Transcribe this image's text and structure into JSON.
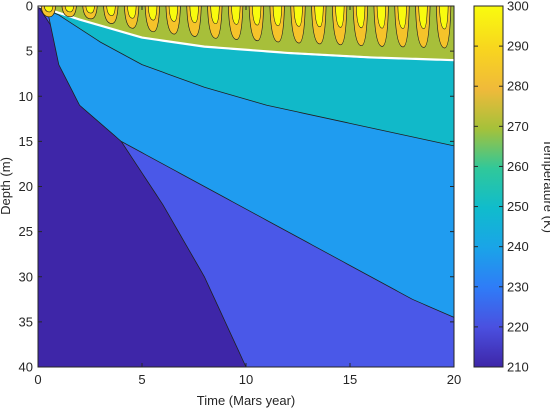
{
  "chart_data": {
    "type": "heatmap",
    "subtype": "filled-contour",
    "title": "",
    "xlabel": "Time (Mars year)",
    "ylabel": "Depth (m)",
    "colorbar_label": "Temperature (K)",
    "xlim": [
      0,
      20
    ],
    "ylim": [
      0,
      40
    ],
    "y_reversed": true,
    "x_ticks": [
      "0",
      "5",
      "10",
      "15",
      "20"
    ],
    "y_ticks": [
      "0",
      "5",
      "10",
      "15",
      "20",
      "25",
      "30",
      "35",
      "40"
    ],
    "colorbar_range": [
      210,
      300
    ],
    "colorbar_ticks": [
      "210",
      "220",
      "230",
      "240",
      "250",
      "260",
      "270",
      "280",
      "290",
      "300"
    ],
    "colormap": "parula",
    "grid": false,
    "contour_levels": [
      {
        "level": 220,
        "color": "#4a58e8",
        "depth_at_time": [
          [
            0,
            0
          ],
          [
            1,
            3.5
          ],
          [
            2,
            8
          ],
          [
            4,
            15
          ],
          [
            6,
            22
          ],
          [
            8,
            30
          ],
          [
            10,
            40
          ]
        ]
      },
      {
        "level": 230,
        "color": "#1f9cf0",
        "depth_at_time": [
          [
            0,
            0
          ],
          [
            0.5,
            1
          ],
          [
            1,
            6.5
          ],
          [
            2,
            11
          ],
          [
            4,
            15
          ],
          [
            6,
            17.5
          ],
          [
            8,
            20
          ],
          [
            10,
            22.5
          ],
          [
            12,
            25
          ],
          [
            14,
            27.5
          ],
          [
            16,
            30
          ],
          [
            18,
            32.5
          ],
          [
            20,
            34.5
          ]
        ]
      },
      {
        "level": 240,
        "color": "#11b9c9",
        "depth_at_time": [
          [
            0,
            0
          ],
          [
            0.5,
            0.5
          ],
          [
            1,
            1
          ],
          [
            3,
            4
          ],
          [
            5,
            6.5
          ],
          [
            8,
            9
          ],
          [
            11,
            11
          ],
          [
            14,
            12.5
          ],
          [
            17,
            14
          ],
          [
            20,
            15.5
          ]
        ]
      },
      {
        "level": 250,
        "color": "#a7bf3a",
        "depth_at_time": [
          [
            0,
            0
          ],
          [
            2,
            1.5
          ],
          [
            5,
            3.5
          ],
          [
            8,
            4.5
          ],
          [
            12,
            5.2
          ],
          [
            16,
            5.7
          ],
          [
            20,
            6.0
          ]
        ]
      }
    ],
    "seasonal_wave_period_years": 1,
    "colors": {
      "c210": "#3e26a8",
      "c220": "#4a58e8",
      "c230": "#1f9cf0",
      "c240": "#11b9c9",
      "c250": "#a7bf3a",
      "c260": "#f5c32a",
      "c300": "#f9fb0e",
      "boundary": "#ffffff",
      "contour_line": "#202020"
    }
  }
}
